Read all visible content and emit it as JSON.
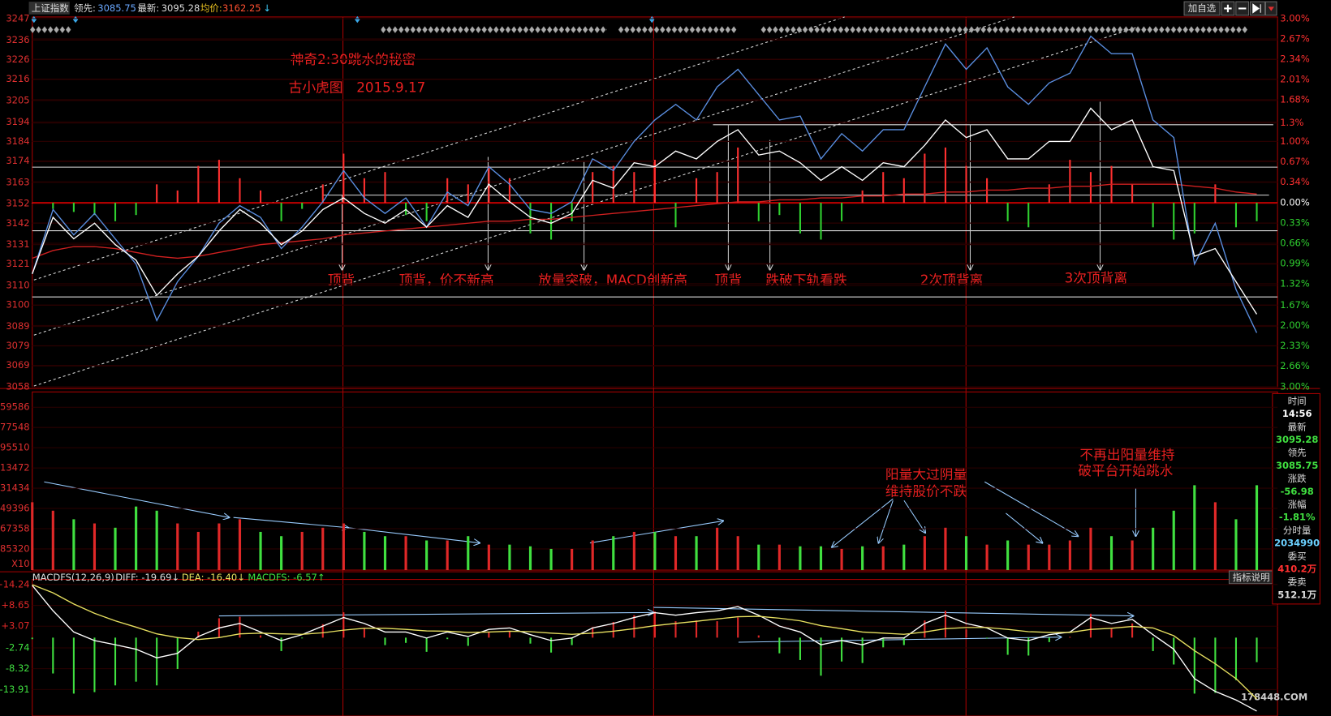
{
  "header": {
    "title": "上证指数",
    "fields": [
      {
        "label": "领先:",
        "value": "3085.75"
      },
      {
        "label": "最新:",
        "value": "3095.28"
      },
      {
        "label": "均价:",
        "value": "3162.25",
        "arrow": "↓"
      }
    ],
    "button": "加自选"
  },
  "annotations": {
    "title": "神奇2:30跳水的秘密",
    "author": "古小虎图　2015.9.17",
    "price_notes": [
      "顶背",
      "顶背，价不新高",
      "放量突破，MACD创新高",
      "顶背",
      "跌破下轨看跌",
      "2次顶背离",
      "3次顶背离"
    ],
    "volume_notes": [
      "阳量大过阴量",
      "维持股价不跌",
      "不再出阳量维持",
      "破平台开始跳水"
    ]
  },
  "side_panel": [
    {
      "label": "时间",
      "value": "14:56"
    },
    {
      "label": "最新",
      "value": "3095.28"
    },
    {
      "label": "领先",
      "value": "3085.75"
    },
    {
      "label": "涨跌",
      "value": "-56.98"
    },
    {
      "label": "涨幅",
      "value": "-1.81%"
    },
    {
      "label": "分时量",
      "value": "2034990"
    },
    {
      "label": "委买",
      "value": "410.2万"
    },
    {
      "label": "委卖",
      "value": "512.1万"
    }
  ],
  "macd_header": {
    "name": "MACDFS(12,26,9)",
    "items": [
      "DIFF: -19.69↓",
      "DEA: -16.40↓",
      "MACDFS: -6.57↑"
    ]
  },
  "indicator_button": "指标说明",
  "watermark": "178448.COM",
  "chart_data": [
    {
      "type": "line",
      "xlim": [
        0,
        240
      ],
      "ylim": [
        3058,
        3247
      ],
      "y2lim": [
        -3,
        3
      ],
      "tick_color": "#e03030",
      "up_color": "#ff3030",
      "down_color": "#30d030",
      "flat_color": "#ffffff",
      "x": [
        0,
        4,
        8,
        12,
        16,
        20,
        24,
        28,
        32,
        36,
        40,
        44,
        48,
        52,
        56,
        60,
        64,
        68,
        72,
        76,
        80,
        84,
        88,
        92,
        96,
        100,
        104,
        108,
        112,
        116,
        120,
        124,
        128,
        132,
        136,
        140,
        144,
        148,
        152,
        156,
        160,
        164,
        168,
        172,
        176,
        180,
        184,
        188,
        192,
        196,
        200,
        204,
        208,
        212,
        216,
        220,
        224,
        228,
        232,
        236
      ],
      "yticks": [
        3247,
        3236,
        3226,
        3216,
        3205,
        3194,
        3184,
        3174,
        3163,
        3152,
        3142,
        3131,
        3121,
        3110,
        3100,
        3089,
        3079,
        3069,
        3058
      ],
      "y2ticks": [
        {
          "value": 3,
          "label": "3.00%"
        },
        {
          "value": 2.67,
          "label": "2.67%"
        },
        {
          "value": 2.34,
          "label": "2.34%"
        },
        {
          "value": 2.01,
          "label": "2.01%"
        },
        {
          "value": 1.68,
          "label": "1.68%"
        },
        {
          "value": 1.3,
          "label": "1.3%"
        },
        {
          "value": 1,
          "label": "1.00%"
        },
        {
          "value": 0.67,
          "label": "0.67%"
        },
        {
          "value": 0.34,
          "label": "0.34%"
        },
        {
          "value": 0,
          "label": "0.00%"
        },
        {
          "value": -0.33,
          "label": "0.33%"
        },
        {
          "value": -0.66,
          "label": "0.66%"
        },
        {
          "value": -0.99,
          "label": "0.99%"
        },
        {
          "value": -1.32,
          "label": "1.32%"
        },
        {
          "value": -1.67,
          "label": "1.67%"
        },
        {
          "value": -2,
          "label": "2.00%"
        },
        {
          "value": -2.33,
          "label": "2.33%"
        },
        {
          "value": -2.66,
          "label": "2.66%"
        },
        {
          "value": -3,
          "label": "3.00%"
        }
      ],
      "series": [
        {
          "type": "bar",
          "axis": "y2",
          "values": [
            0,
            -0.1,
            -0.15,
            -0.2,
            -0.3,
            -0.2,
            0.3,
            0.2,
            0.6,
            0.7,
            0.4,
            0.2,
            -0.3,
            -0.1,
            0.3,
            0.8,
            0.4,
            0.5,
            -0.2,
            -0.3,
            0.4,
            0.3,
            0.6,
            0.4,
            -0.5,
            -0.6,
            -0.3,
            0.5,
            0.6,
            0.5,
            0.7,
            -0.4,
            0.4,
            0.5,
            0.9,
            -0.3,
            -0.2,
            -0.5,
            -0.6,
            -0.3,
            0.2,
            0.5,
            0.4,
            0.8,
            0.9,
            0.6,
            0.4,
            -0.3,
            -0.4,
            0.3,
            0.7,
            0.5,
            0.6,
            0.3,
            -0.4,
            -0.6,
            -0.5,
            0.3,
            -0.4,
            -0.3
          ]
        },
        {
          "color": "#d02020",
          "values": [
            3124,
            3128,
            3130,
            3130,
            3129,
            3127,
            3125,
            3124,
            3125,
            3127,
            3129,
            3131,
            3132,
            3133,
            3134,
            3136,
            3137,
            3138,
            3139,
            3140,
            3141,
            3142,
            3143,
            3143,
            3144,
            3144,
            3145,
            3146,
            3147,
            3148,
            3149,
            3150,
            3151,
            3152,
            3153,
            3153,
            3154,
            3154,
            3155,
            3155,
            3156,
            3156,
            3157,
            3157,
            3158,
            3158,
            3159,
            3159,
            3160,
            3160,
            3161,
            3161,
            3162,
            3162,
            3162,
            3162,
            3161,
            3160,
            3158,
            3157
          ]
        },
        {
          "color": "#5a8ee0",
          "values": [
            3116,
            3149,
            3136,
            3147,
            3134,
            3121,
            3092,
            3112,
            3125,
            3142,
            3151,
            3145,
            3129,
            3140,
            3153,
            3169,
            3155,
            3147,
            3155,
            3140,
            3158,
            3151,
            3171,
            3162,
            3149,
            3147,
            3153,
            3175,
            3169,
            3184,
            3195,
            3203,
            3195,
            3212,
            3221,
            3208,
            3195,
            3197,
            3175,
            3188,
            3179,
            3190,
            3190,
            3212,
            3234,
            3221,
            3232,
            3212,
            3203,
            3214,
            3219,
            3238,
            3229,
            3229,
            3195,
            3186,
            3121,
            3142,
            3108,
            3085.75
          ]
        },
        {
          "color": "#ffffff",
          "values": [
            3116,
            3145,
            3134,
            3142,
            3131,
            3123,
            3105,
            3116,
            3125,
            3138,
            3149,
            3142,
            3131,
            3138,
            3149,
            3155,
            3147,
            3142,
            3149,
            3140,
            3151,
            3145,
            3162,
            3153,
            3145,
            3142,
            3147,
            3164,
            3160,
            3173,
            3171,
            3179,
            3175,
            3184,
            3190,
            3177,
            3179,
            3173,
            3164,
            3171,
            3164,
            3173,
            3171,
            3182,
            3195,
            3186,
            3190,
            3175,
            3175,
            3184,
            3184,
            3201,
            3190,
            3195,
            3171,
            3169,
            3125,
            3129,
            3112,
            3095.28
          ]
        }
      ]
    },
    {
      "type": "bar",
      "xlim": [
        0,
        240
      ],
      "ylim": [
        204100,
        46000
      ],
      "tick_color": "#e03030",
      "up_color": "#e02828",
      "down_color": "#40e040",
      "unit_label": "X10",
      "x": [
        0,
        4,
        8,
        12,
        16,
        20,
        24,
        28,
        32,
        36,
        40,
        44,
        48,
        52,
        56,
        60,
        64,
        68,
        72,
        76,
        80,
        84,
        88,
        92,
        96,
        100,
        104,
        108,
        112,
        116,
        120,
        124,
        128,
        132,
        136,
        140,
        144,
        148,
        152,
        156,
        160,
        164,
        168,
        172,
        176,
        180,
        184,
        188,
        192,
        196,
        200,
        204,
        208,
        212,
        216,
        220,
        224,
        228,
        232,
        236
      ],
      "yticks": [
        59586,
        77548,
        95510,
        {
          "value": 113472,
          "label": "13472"
        },
        {
          "value": 131434,
          "label": "31434"
        },
        {
          "value": 149396,
          "label": "49396"
        },
        {
          "value": 167358,
          "label": "67358"
        },
        {
          "value": 185320,
          "label": "85320"
        }
      ],
      "values": [
        143900,
        151400,
        159000,
        162700,
        166500,
        147700,
        151400,
        162700,
        170200,
        162700,
        159000,
        170200,
        174000,
        170200,
        166500,
        162700,
        170200,
        174000,
        174000,
        177800,
        177800,
        174000,
        181500,
        181500,
        183000,
        185300,
        185300,
        177800,
        174000,
        170200,
        170200,
        174000,
        174000,
        166500,
        174000,
        181500,
        181500,
        183000,
        183000,
        185300,
        183000,
        183000,
        181500,
        174000,
        166500,
        174000,
        181500,
        177800,
        181500,
        181500,
        177800,
        166500,
        174000,
        177800,
        166500,
        151400,
        128800,
        143900,
        159000,
        128800
      ]
    },
    {
      "type": "macd",
      "xlim": [
        0,
        240
      ],
      "ylim": [
        -21,
        15.6
      ],
      "up_color": "#e02828",
      "down_color": "#40e040",
      "x": [
        0,
        4,
        8,
        12,
        16,
        20,
        24,
        28,
        32,
        36,
        40,
        44,
        48,
        52,
        56,
        60,
        64,
        68,
        72,
        76,
        80,
        84,
        88,
        92,
        96,
        100,
        104,
        108,
        112,
        116,
        120,
        124,
        128,
        132,
        136,
        140,
        144,
        148,
        152,
        156,
        160,
        164,
        168,
        172,
        176,
        180,
        184,
        188,
        192,
        196,
        200,
        204,
        208,
        212,
        216,
        220,
        224,
        228,
        232,
        236
      ],
      "yticks": [
        {
          "value": 14.24,
          "label": "+14.24"
        },
        {
          "value": 8.65,
          "label": "+8.65"
        },
        {
          "value": 3.07,
          "label": "+3.07"
        },
        -2.74,
        -8.32,
        -13.91
      ],
      "series": [
        {
          "type": "bar",
          "values": [
            -0.4,
            -9.6,
            -15,
            -14.6,
            -12.8,
            -11.8,
            -12.8,
            -8.4,
            1.6,
            5.2,
            5.6,
            0.6,
            -3.6,
            -0.2,
            3.6,
            6.8,
            2.6,
            -2.0,
            -1.4,
            -3.8,
            -0.4,
            -2.2,
            1.4,
            1.8,
            -1.6,
            -4.0,
            -2.0,
            2.8,
            4.2,
            6.0,
            7.0,
            4.4,
            4.6,
            4.4,
            5.4,
            0.6,
            -4.2,
            -6.0,
            -10.2,
            -6.4,
            -6.8,
            -2.6,
            -2.0,
            4.6,
            7.2,
            2.2,
            -0.2,
            -4.6,
            -4.8,
            -1.2,
            0.2,
            6.4,
            2.6,
            3.8,
            -3.6,
            -7.2,
            -15,
            -14.8,
            -11.4,
            -6.57
          ]
        },
        {
          "color": "#ffffff",
          "values": [
            14,
            7.2,
            1.5,
            -0.8,
            -1.9,
            -3.1,
            -5.4,
            -4.2,
            0.3,
            2.6,
            3.8,
            1.5,
            -0.8,
            0.8,
            3.1,
            5.4,
            3.8,
            1.5,
            1.5,
            -0.1,
            1.5,
            0.3,
            2.2,
            2.6,
            0.8,
            -0.8,
            -0.1,
            2.6,
            3.8,
            5.4,
            6.7,
            6.0,
            6.7,
            7.2,
            8.3,
            6.0,
            3.1,
            1.5,
            -1.9,
            -0.8,
            -1.9,
            -0.1,
            -0.1,
            3.8,
            6.0,
            3.8,
            2.6,
            -0.1,
            -0.8,
            0.8,
            1.5,
            5.4,
            3.8,
            4.9,
            0.8,
            -3.1,
            -11.0,
            -14.4,
            -16.7,
            -19.69
          ]
        },
        {
          "color": "#e8e060",
          "values": [
            14.2,
            12,
            9,
            6.5,
            4.5,
            2.8,
            1,
            0,
            -0.5,
            0,
            1,
            1.2,
            1,
            0.9,
            1.3,
            2,
            2.5,
            2.5,
            2.2,
            1.8,
            1.7,
            1.4,
            1.5,
            1.7,
            1.6,
            1.2,
            0.9,
            1.2,
            1.7,
            2.4,
            3.2,
            3.8,
            4.4,
            5.0,
            5.6,
            5.7,
            5.2,
            4.5,
            3.2,
            2.4,
            1.5,
            1.2,
            0.9,
            1.5,
            2.4,
            2.7,
            2.7,
            2.2,
            1.6,
            1.4,
            1.4,
            2.2,
            2.5,
            3.0,
            2.6,
            0.5,
            -3.5,
            -7,
            -11,
            -16.4
          ]
        }
      ]
    }
  ]
}
